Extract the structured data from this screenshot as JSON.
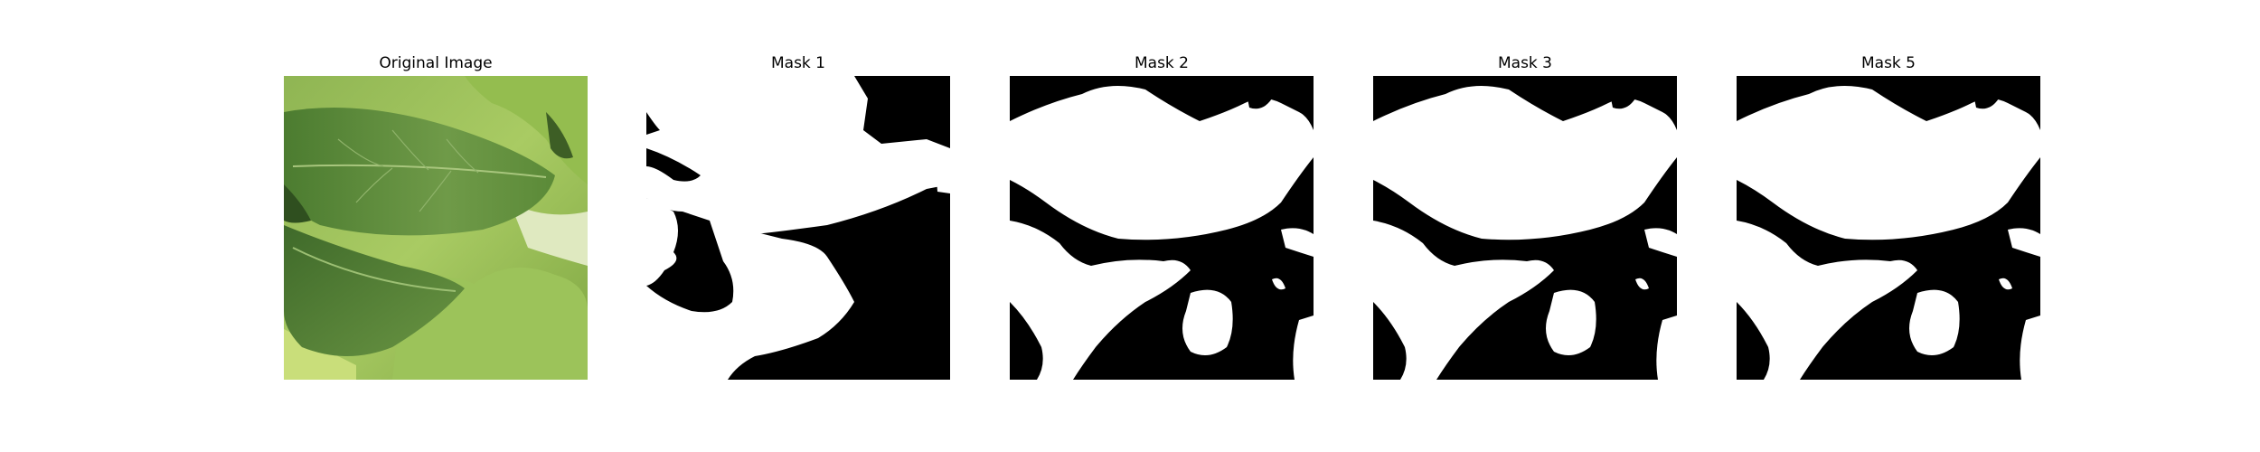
{
  "panels": [
    {
      "title": "Original Image",
      "kind": "photo"
    },
    {
      "title": "Mask 1",
      "kind": "mask"
    },
    {
      "title": "Mask 2",
      "kind": "mask"
    },
    {
      "title": "Mask 3",
      "kind": "mask"
    },
    {
      "title": "Mask 5",
      "kind": "mask"
    }
  ],
  "colors": {
    "background": "#ffffff",
    "mask_foreground": "#ffffff",
    "mask_background": "#000000",
    "leaf_dark": "#3f6a2a",
    "leaf_mid": "#6f9a45",
    "leaf_light": "#b6d36a"
  }
}
